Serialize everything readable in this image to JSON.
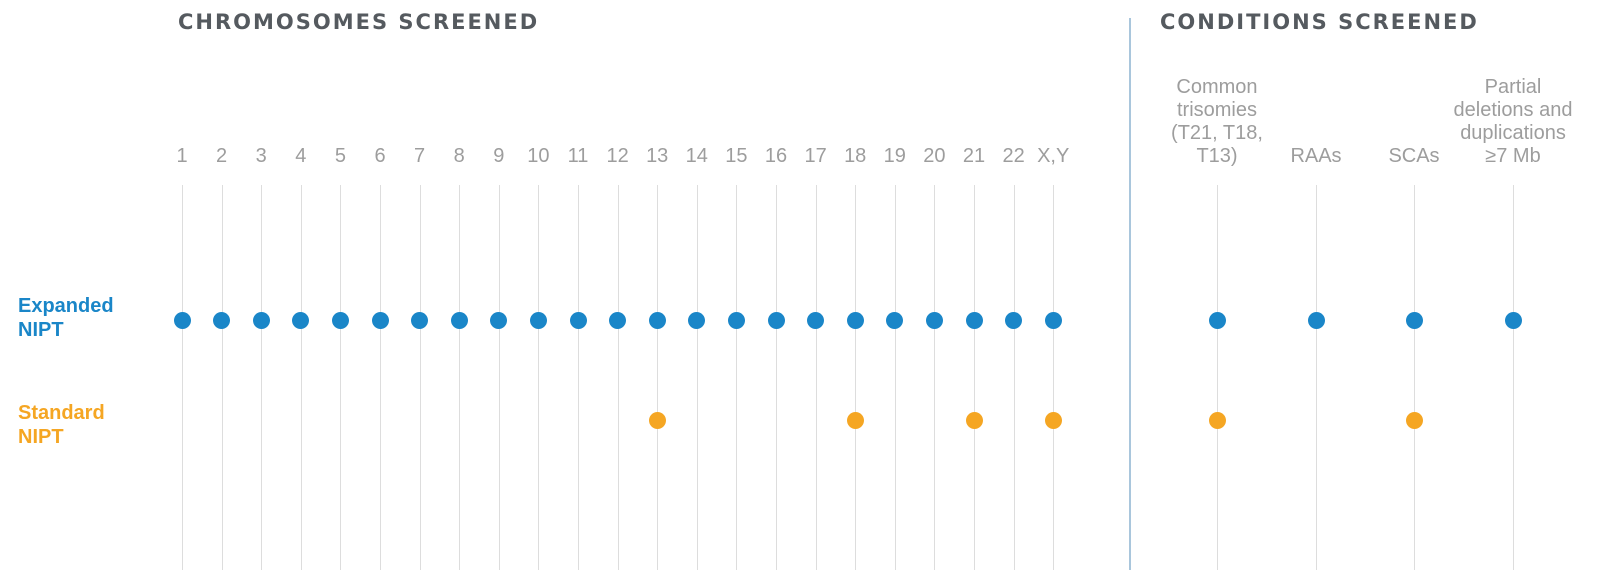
{
  "headings": {
    "chromosomes": "CHROMOSOMES SCREENED",
    "conditions": "CONDITIONS SCREENED"
  },
  "colors": {
    "expanded": "#1a86c8",
    "standard": "#f5a623",
    "heading": "#555a5f",
    "label": "#9d9d9d",
    "gridline": "#dddddd",
    "divider": "#a9c6dc"
  },
  "rows": [
    {
      "key": "expanded",
      "label": "Expanded\nNIPT"
    },
    {
      "key": "standard",
      "label": "Standard\nNIPT"
    }
  ],
  "chromosomes": [
    {
      "label": "1",
      "expanded": true,
      "standard": false
    },
    {
      "label": "2",
      "expanded": true,
      "standard": false
    },
    {
      "label": "3",
      "expanded": true,
      "standard": false
    },
    {
      "label": "4",
      "expanded": true,
      "standard": false
    },
    {
      "label": "5",
      "expanded": true,
      "standard": false
    },
    {
      "label": "6",
      "expanded": true,
      "standard": false
    },
    {
      "label": "7",
      "expanded": true,
      "standard": false
    },
    {
      "label": "8",
      "expanded": true,
      "standard": false
    },
    {
      "label": "9",
      "expanded": true,
      "standard": false
    },
    {
      "label": "10",
      "expanded": true,
      "standard": false
    },
    {
      "label": "11",
      "expanded": true,
      "standard": false
    },
    {
      "label": "12",
      "expanded": true,
      "standard": false
    },
    {
      "label": "13",
      "expanded": true,
      "standard": true
    },
    {
      "label": "14",
      "expanded": true,
      "standard": false
    },
    {
      "label": "15",
      "expanded": true,
      "standard": false
    },
    {
      "label": "16",
      "expanded": true,
      "standard": false
    },
    {
      "label": "17",
      "expanded": true,
      "standard": false
    },
    {
      "label": "18",
      "expanded": true,
      "standard": true
    },
    {
      "label": "19",
      "expanded": true,
      "standard": false
    },
    {
      "label": "20",
      "expanded": true,
      "standard": false
    },
    {
      "label": "21",
      "expanded": true,
      "standard": true
    },
    {
      "label": "22",
      "expanded": true,
      "standard": false
    },
    {
      "label": "X,Y",
      "expanded": true,
      "standard": true
    }
  ],
  "conditions": [
    {
      "label": "Common\ntrisomies\n(T21, T18,\nT13)",
      "expanded": true,
      "standard": true
    },
    {
      "label": "RAAs",
      "expanded": true,
      "standard": false
    },
    {
      "label": "SCAs",
      "expanded": true,
      "standard": true
    },
    {
      "label": "Partial\ndeletions and\nduplications\n≥7 Mb",
      "expanded": true,
      "standard": false
    }
  ]
}
